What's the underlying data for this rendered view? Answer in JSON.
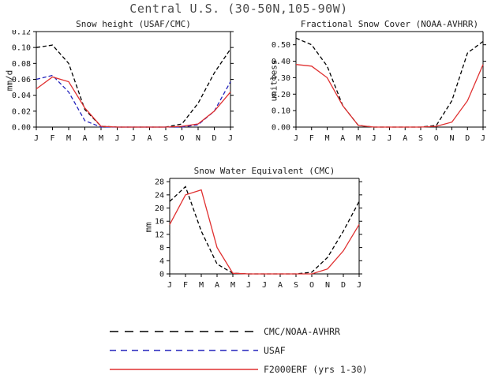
{
  "title": "Central U.S. (30-50N,105-90W)",
  "legend": {
    "items": [
      {
        "label": "CMC/NOAA-AVHRR",
        "color": "#000000",
        "dash": "long"
      },
      {
        "label": "USAF",
        "color": "#2222bb",
        "dash": "medium"
      },
      {
        "label": "F2000ERF (yrs 1-30)",
        "color": "#e03030",
        "dash": "solid"
      }
    ]
  },
  "chart_data": [
    {
      "type": "line",
      "title": "Snow height (USAF/CMC)",
      "ylabel": "mm/d",
      "ylim": [
        0,
        0.12
      ],
      "yticks": [
        0,
        0.02,
        0.04,
        0.06,
        0.08,
        0.1,
        0.12
      ],
      "ytick_labels": [
        "0.00",
        "0.02",
        "0.04",
        "0.06",
        "0.08",
        "0.10",
        "0.12"
      ],
      "categories": [
        "J",
        "F",
        "M",
        "A",
        "M",
        "J",
        "J",
        "A",
        "S",
        "O",
        "N",
        "D",
        "J"
      ],
      "grid": false,
      "series": [
        {
          "name": "CMC/NOAA-AVHRR",
          "color": "#000000",
          "dash": "dashed",
          "values": [
            0.1,
            0.103,
            0.08,
            0.022,
            0.001,
            0,
            0,
            0,
            0,
            0.004,
            0.03,
            0.068,
            0.098
          ]
        },
        {
          "name": "USAF",
          "color": "#2222bb",
          "dash": "dashed",
          "values": [
            0.06,
            0.065,
            0.044,
            0.008,
            0,
            0,
            0,
            0,
            0,
            0,
            0.003,
            0.02,
            0.057
          ]
        },
        {
          "name": "F2000ERF (yrs 1-30)",
          "color": "#e03030",
          "dash": "solid",
          "values": [
            0.048,
            0.063,
            0.057,
            0.024,
            0.001,
            0,
            0,
            0,
            0,
            0.001,
            0.004,
            0.02,
            0.044
          ]
        }
      ]
    },
    {
      "type": "line",
      "title": "Fractional Snow Cover (NOAA-AVHRR)",
      "ylabel": "unitless",
      "ylim": [
        0,
        0.58
      ],
      "yticks": [
        0,
        0.1,
        0.2,
        0.3,
        0.4,
        0.5
      ],
      "ytick_labels": [
        "0.00",
        "0.10",
        "0.20",
        "0.30",
        "0.40",
        "0.50"
      ],
      "categories": [
        "J",
        "F",
        "M",
        "A",
        "M",
        "J",
        "J",
        "A",
        "S",
        "O",
        "N",
        "D",
        "J"
      ],
      "grid": false,
      "series": [
        {
          "name": "CMC/NOAA-AVHRR",
          "color": "#000000",
          "dash": "dashed",
          "values": [
            0.54,
            0.5,
            0.37,
            0.13,
            0.01,
            0,
            0,
            0,
            0,
            0.01,
            0.16,
            0.45,
            0.52
          ]
        },
        {
          "name": "F2000ERF (yrs 1-30)",
          "color": "#e03030",
          "dash": "solid",
          "values": [
            0.38,
            0.37,
            0.3,
            0.13,
            0.01,
            0,
            0,
            0,
            0,
            0.005,
            0.03,
            0.16,
            0.38
          ]
        }
      ]
    },
    {
      "type": "line",
      "title": "Snow Water Equivalent (CMC)",
      "ylabel": "mm",
      "ylim": [
        0,
        29
      ],
      "yticks": [
        0,
        4,
        8,
        12,
        16,
        20,
        24,
        28
      ],
      "ytick_labels": [
        "0",
        "4",
        "8",
        "12",
        "16",
        "20",
        "24",
        "28"
      ],
      "categories": [
        "J",
        "F",
        "M",
        "A",
        "M",
        "J",
        "J",
        "A",
        "S",
        "O",
        "N",
        "D",
        "J"
      ],
      "grid": false,
      "series": [
        {
          "name": "CMC/NOAA-AVHRR",
          "color": "#000000",
          "dash": "dashed",
          "values": [
            22,
            26.5,
            13,
            3,
            0.2,
            0,
            0,
            0,
            0,
            0.5,
            5,
            13,
            22
          ]
        },
        {
          "name": "F2000ERF (yrs 1-30)",
          "color": "#e03030",
          "dash": "solid",
          "values": [
            15,
            24,
            25.5,
            8,
            0.2,
            0,
            0,
            0,
            0,
            0,
            1.5,
            7,
            15
          ]
        }
      ]
    }
  ]
}
